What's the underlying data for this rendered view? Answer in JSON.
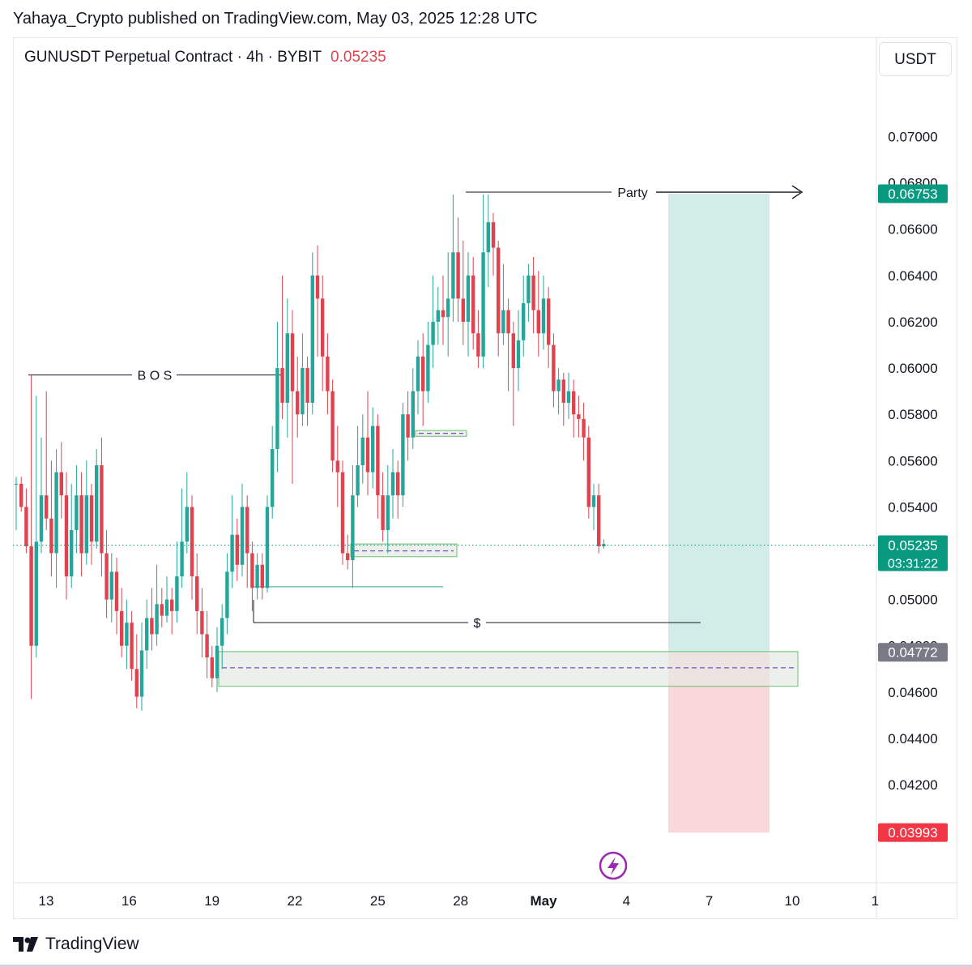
{
  "header": {
    "published": "Yahaya_Crypto published on TradingView.com, May 03, 2025 12:28 UTC"
  },
  "symbol": {
    "name": "GUNUSDT Perpetual Contract · 4h · BYBIT",
    "last_price": "0.05235"
  },
  "currency_button": "USDT",
  "footer": {
    "brand": "TradingView"
  },
  "colors": {
    "up": "#26a69a",
    "down": "#e0434f",
    "target_zone": "#cdeae5",
    "stop_zone": "#f9d3d7",
    "demand_zone_fill": "#e4e9e4",
    "demand_zone_border": "#6abf6e",
    "dash": "#7b4fc4"
  },
  "chart_data": {
    "type": "candlestick",
    "title": "GUNUSDT Perpetual Contract · 4h · BYBIT",
    "ylim": [
      0.0378,
      0.0738
    ],
    "y_ticks": [
      "0.07000",
      "0.06800",
      "0.06600",
      "0.06400",
      "0.06200",
      "0.06000",
      "0.05800",
      "0.05600",
      "0.05400",
      "0.05000",
      "0.04800",
      "0.04600",
      "0.04400",
      "0.04200"
    ],
    "x_ticks": [
      {
        "label": "13",
        "day": 13
      },
      {
        "label": "16",
        "day": 16
      },
      {
        "label": "19",
        "day": 19
      },
      {
        "label": "22",
        "day": 22
      },
      {
        "label": "25",
        "day": 25
      },
      {
        "label": "28",
        "day": 28
      },
      {
        "label": "May",
        "day": 31
      },
      {
        "label": "4",
        "day": 34
      },
      {
        "label": "7",
        "day": 37
      },
      {
        "label": "10",
        "day": 40
      },
      {
        "label": "1",
        "day": 43
      }
    ],
    "price_tags": [
      {
        "label": "0.06753",
        "value": 0.06753,
        "color": "#089981"
      },
      {
        "label": "0.05235",
        "value": 0.05235,
        "color": "#089981",
        "sub": "03:31:22"
      },
      {
        "label": "0.04772",
        "value": 0.04772,
        "color": "#787b86"
      },
      {
        "label": "0.03993",
        "value": 0.03993,
        "color": "#f23645"
      }
    ],
    "annotations": [
      {
        "text": "B O S",
        "price": 0.0597
      },
      {
        "text": "Party",
        "price": 0.06753
      },
      {
        "text": "$",
        "price": 0.049
      }
    ],
    "position": {
      "entry": 0.04772,
      "target": 0.06753,
      "stop": 0.03993
    },
    "candles": [
      [
        0.055,
        0.055,
        0.0553,
        0.053
      ],
      [
        0.055,
        0.054,
        0.0553,
        0.0538
      ],
      [
        0.054,
        0.0523,
        0.0548,
        0.052
      ],
      [
        0.0523,
        0.048,
        0.0597,
        0.0457
      ],
      [
        0.048,
        0.0525,
        0.0588,
        0.0475
      ],
      [
        0.0525,
        0.0545,
        0.057,
        0.052
      ],
      [
        0.0545,
        0.0535,
        0.059,
        0.053
      ],
      [
        0.0535,
        0.052,
        0.056,
        0.051
      ],
      [
        0.052,
        0.0555,
        0.0565,
        0.0505
      ],
      [
        0.0555,
        0.0545,
        0.0568,
        0.0535
      ],
      [
        0.0545,
        0.051,
        0.0555,
        0.05
      ],
      [
        0.051,
        0.053,
        0.055,
        0.0505
      ],
      [
        0.053,
        0.0545,
        0.0558,
        0.052
      ],
      [
        0.0545,
        0.052,
        0.0555,
        0.051
      ],
      [
        0.052,
        0.0545,
        0.056,
        0.0515
      ],
      [
        0.0545,
        0.0525,
        0.055,
        0.0515
      ],
      [
        0.0525,
        0.0558,
        0.0565,
        0.0522
      ],
      [
        0.0558,
        0.052,
        0.057,
        0.051
      ],
      [
        0.052,
        0.05,
        0.053,
        0.0492
      ],
      [
        0.05,
        0.0512,
        0.052,
        0.049
      ],
      [
        0.0512,
        0.0495,
        0.0518,
        0.0485
      ],
      [
        0.0495,
        0.048,
        0.0505,
        0.0475
      ],
      [
        0.048,
        0.049,
        0.05,
        0.047
      ],
      [
        0.049,
        0.047,
        0.0495,
        0.0465
      ],
      [
        0.047,
        0.0458,
        0.0485,
        0.0453
      ],
      [
        0.0458,
        0.0478,
        0.049,
        0.0452
      ],
      [
        0.0478,
        0.0492,
        0.05,
        0.047
      ],
      [
        0.0492,
        0.0485,
        0.0505,
        0.0478
      ],
      [
        0.0485,
        0.0498,
        0.0515,
        0.048
      ],
      [
        0.0498,
        0.0493,
        0.0505,
        0.0488
      ],
      [
        0.0493,
        0.05,
        0.051,
        0.049
      ],
      [
        0.05,
        0.0495,
        0.0505,
        0.0485
      ],
      [
        0.0495,
        0.051,
        0.0525,
        0.049
      ],
      [
        0.051,
        0.0525,
        0.0548,
        0.0505
      ],
      [
        0.0525,
        0.054,
        0.0555,
        0.052
      ],
      [
        0.054,
        0.051,
        0.0545,
        0.05
      ],
      [
        0.051,
        0.0495,
        0.052,
        0.0485
      ],
      [
        0.0495,
        0.0485,
        0.0505,
        0.0475
      ],
      [
        0.0485,
        0.0475,
        0.0495,
        0.0466
      ],
      [
        0.0475,
        0.0466,
        0.048,
        0.0462
      ],
      [
        0.0466,
        0.048,
        0.0488,
        0.046
      ],
      [
        0.048,
        0.0492,
        0.0498,
        0.047
      ],
      [
        0.0492,
        0.0512,
        0.052,
        0.0485
      ],
      [
        0.0512,
        0.0528,
        0.0545,
        0.0505
      ],
      [
        0.0528,
        0.0515,
        0.0535,
        0.0508
      ],
      [
        0.0515,
        0.054,
        0.055,
        0.051
      ],
      [
        0.054,
        0.052,
        0.0545,
        0.0505
      ],
      [
        0.052,
        0.0505,
        0.0525,
        0.0495
      ],
      [
        0.0505,
        0.0515,
        0.052,
        0.05
      ],
      [
        0.0515,
        0.0505,
        0.052,
        0.05
      ],
      [
        0.0505,
        0.054,
        0.0545,
        0.0503
      ],
      [
        0.054,
        0.0565,
        0.0575,
        0.0535
      ],
      [
        0.0565,
        0.06,
        0.062,
        0.0555
      ],
      [
        0.06,
        0.0585,
        0.064,
        0.0578
      ],
      [
        0.0585,
        0.0615,
        0.063,
        0.057
      ],
      [
        0.0615,
        0.059,
        0.0625,
        0.055
      ],
      [
        0.059,
        0.058,
        0.0605,
        0.057
      ],
      [
        0.058,
        0.06,
        0.0615,
        0.0575
      ],
      [
        0.06,
        0.0585,
        0.0605,
        0.0575
      ],
      [
        0.0585,
        0.064,
        0.065,
        0.058
      ],
      [
        0.064,
        0.063,
        0.0653,
        0.0605
      ],
      [
        0.063,
        0.0605,
        0.064,
        0.059
      ],
      [
        0.0605,
        0.059,
        0.0615,
        0.058
      ],
      [
        0.059,
        0.056,
        0.0595,
        0.0555
      ],
      [
        0.056,
        0.0555,
        0.0575,
        0.054
      ],
      [
        0.0555,
        0.052,
        0.056,
        0.0515
      ],
      [
        0.052,
        0.0517,
        0.0528,
        0.0513
      ],
      [
        0.0517,
        0.0545,
        0.0558,
        0.0505
      ],
      [
        0.0545,
        0.0558,
        0.0575,
        0.054
      ],
      [
        0.0558,
        0.057,
        0.058,
        0.055
      ],
      [
        0.057,
        0.0555,
        0.059,
        0.0545
      ],
      [
        0.0555,
        0.0575,
        0.0583,
        0.0548
      ],
      [
        0.0575,
        0.0545,
        0.058,
        0.0535
      ],
      [
        0.0545,
        0.053,
        0.0555,
        0.0525
      ],
      [
        0.053,
        0.0545,
        0.0558,
        0.052
      ],
      [
        0.0545,
        0.0555,
        0.0565,
        0.0535
      ],
      [
        0.0555,
        0.0545,
        0.056,
        0.0535
      ],
      [
        0.0545,
        0.058,
        0.0585,
        0.054
      ],
      [
        0.058,
        0.057,
        0.059,
        0.056
      ],
      [
        0.057,
        0.059,
        0.06,
        0.0565
      ],
      [
        0.059,
        0.0605,
        0.0612,
        0.058
      ],
      [
        0.0605,
        0.059,
        0.0615,
        0.0575
      ],
      [
        0.059,
        0.061,
        0.062,
        0.0585
      ],
      [
        0.061,
        0.062,
        0.064,
        0.06
      ],
      [
        0.062,
        0.0625,
        0.0635,
        0.061
      ],
      [
        0.0625,
        0.0622,
        0.064,
        0.061
      ],
      [
        0.0622,
        0.063,
        0.065,
        0.0605
      ],
      [
        0.063,
        0.065,
        0.0675,
        0.062
      ],
      [
        0.065,
        0.063,
        0.0665,
        0.062
      ],
      [
        0.063,
        0.062,
        0.0655,
        0.061
      ],
      [
        0.062,
        0.064,
        0.065,
        0.0605
      ],
      [
        0.064,
        0.0615,
        0.0648,
        0.0608
      ],
      [
        0.0615,
        0.0605,
        0.0625,
        0.06
      ],
      [
        0.0605,
        0.065,
        0.0675,
        0.06
      ],
      [
        0.065,
        0.0663,
        0.0675,
        0.0635
      ],
      [
        0.0663,
        0.0652,
        0.0667,
        0.064
      ],
      [
        0.0652,
        0.0615,
        0.0655,
        0.0605
      ],
      [
        0.0615,
        0.0625,
        0.0645,
        0.061
      ],
      [
        0.0625,
        0.0615,
        0.063,
        0.059
      ],
      [
        0.0615,
        0.06,
        0.062,
        0.0575
      ],
      [
        0.06,
        0.0612,
        0.0625,
        0.059
      ],
      [
        0.0612,
        0.0628,
        0.064,
        0.0605
      ],
      [
        0.0628,
        0.064,
        0.0645,
        0.062
      ],
      [
        0.064,
        0.0625,
        0.0648,
        0.0615
      ],
      [
        0.0625,
        0.0615,
        0.0642,
        0.0605
      ],
      [
        0.0615,
        0.063,
        0.064,
        0.0608
      ],
      [
        0.063,
        0.061,
        0.0635,
        0.06
      ],
      [
        0.061,
        0.059,
        0.0615,
        0.0583
      ],
      [
        0.059,
        0.0595,
        0.06,
        0.058
      ],
      [
        0.0595,
        0.0585,
        0.0598,
        0.0575
      ],
      [
        0.0585,
        0.059,
        0.0598,
        0.0578
      ],
      [
        0.059,
        0.058,
        0.0595,
        0.057
      ],
      [
        0.058,
        0.0578,
        0.0588,
        0.057
      ],
      [
        0.0578,
        0.057,
        0.0585,
        0.056
      ],
      [
        0.057,
        0.054,
        0.0575,
        0.0535
      ],
      [
        0.054,
        0.0545,
        0.055,
        0.053
      ],
      [
        0.0545,
        0.0523,
        0.055,
        0.052
      ],
      [
        0.0523,
        0.0524,
        0.0526,
        0.0522
      ]
    ]
  }
}
